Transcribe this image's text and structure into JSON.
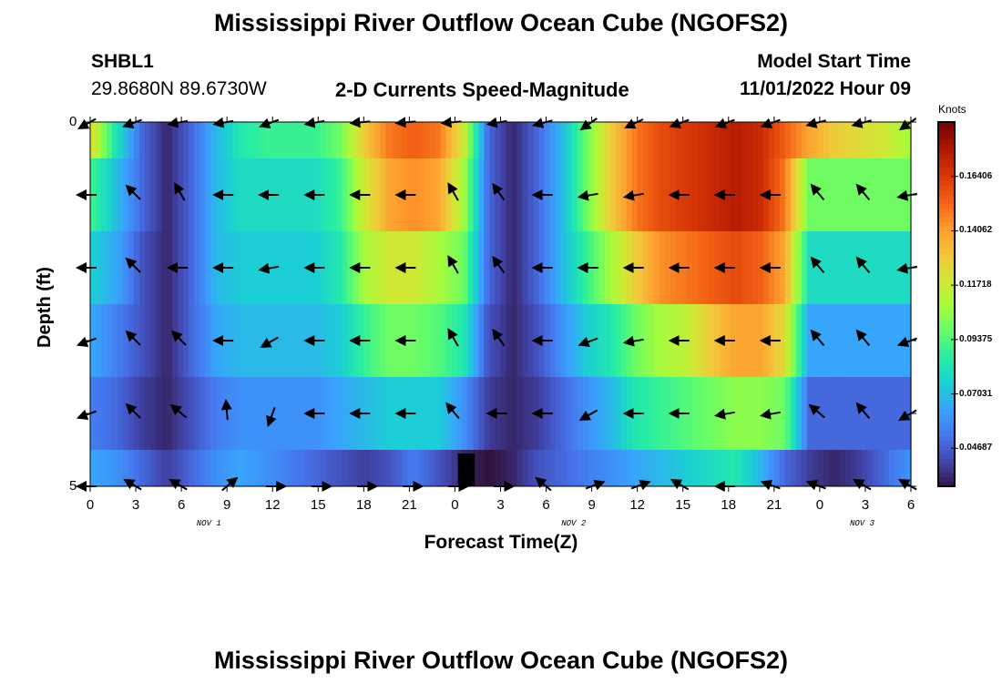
{
  "header": {
    "title": "Mississippi River Outflow Ocean Cube (NGOFS2)",
    "station": "SHBL1",
    "coords": "29.8680N  89.6730W",
    "subtitle": "2-D Currents Speed-Magnitude",
    "model_label": "Model Start Time",
    "model_time": "11/01/2022 Hour 09"
  },
  "footer": {
    "title": "Mississippi River Outflow Ocean Cube (NGOFS2)"
  },
  "colors": {
    "colormap": [
      "#30123b",
      "#4145ab",
      "#4675ed",
      "#39a2fc",
      "#1bcfd4",
      "#24eca6",
      "#61fc6c",
      "#a4fc3b",
      "#d1e834",
      "#f3c63a",
      "#fe9b2d",
      "#f36315",
      "#d93806",
      "#b11901",
      "#7a0402"
    ]
  },
  "chart_data": {
    "type": "heatmap",
    "xlabel": "Forecast Time(Z)",
    "ylabel": "Depth (ft)",
    "x_tick_labels": [
      "0",
      "3",
      "6",
      "9",
      "12",
      "15",
      "18",
      "21",
      "0",
      "3",
      "6",
      "9",
      "12",
      "15",
      "18",
      "21",
      "0",
      "3",
      "6"
    ],
    "date_labels": [
      "NOV 1",
      "NOV 2",
      "NOV 3"
    ],
    "y_tick_labels": [
      "0",
      "5"
    ],
    "ylim": [
      0,
      5
    ],
    "xlim_hours": [
      0,
      54
    ],
    "colorbar": {
      "title": "Knots",
      "range": [
        0.0305,
        0.1875
      ],
      "tick_labels": [
        "0.16406",
        "0.14062",
        "0.11718",
        "0.09375",
        "0.07031",
        "0.04687"
      ],
      "tick_values": [
        0.16406,
        0.14062,
        0.11718,
        0.09375,
        0.07031,
        0.04687
      ]
    },
    "layers": [
      {
        "depth_band": [
          0,
          0.5
        ],
        "speed": [
          0.12,
          0.08,
          0.05,
          0.035,
          0.05,
          0.07,
          0.085,
          0.09,
          0.09,
          0.09,
          0.1,
          0.13,
          0.15,
          0.155,
          0.15,
          0.12,
          0.05,
          0.035,
          0.05,
          0.07,
          0.1,
          0.13,
          0.15,
          0.16,
          0.165,
          0.17,
          0.175,
          0.17,
          0.155,
          0.14,
          0.13,
          0.125,
          0.12,
          0.11
        ]
      },
      {
        "depth_band": [
          0.5,
          1.5
        ],
        "speed": [
          0.09,
          0.07,
          0.05,
          0.035,
          0.05,
          0.07,
          0.08,
          0.08,
          0.08,
          0.08,
          0.09,
          0.12,
          0.14,
          0.145,
          0.14,
          0.11,
          0.05,
          0.035,
          0.05,
          0.07,
          0.1,
          0.13,
          0.15,
          0.16,
          0.165,
          0.17,
          0.175,
          0.17,
          0.15,
          0.1,
          0.1,
          0.1,
          0.1,
          0.1
        ]
      },
      {
        "depth_band": [
          1.5,
          2.5
        ],
        "speed": [
          0.075,
          0.065,
          0.045,
          0.035,
          0.05,
          0.07,
          0.075,
          0.075,
          0.075,
          0.075,
          0.085,
          0.11,
          0.12,
          0.12,
          0.11,
          0.1,
          0.05,
          0.035,
          0.05,
          0.07,
          0.09,
          0.11,
          0.13,
          0.145,
          0.15,
          0.155,
          0.16,
          0.155,
          0.14,
          0.08,
          0.08,
          0.08,
          0.08,
          0.08
        ]
      },
      {
        "depth_band": [
          2.5,
          3.5
        ],
        "speed": [
          0.065,
          0.055,
          0.045,
          0.035,
          0.05,
          0.065,
          0.07,
          0.07,
          0.07,
          0.07,
          0.075,
          0.09,
          0.1,
          0.1,
          0.095,
          0.085,
          0.045,
          0.035,
          0.045,
          0.06,
          0.075,
          0.085,
          0.1,
          0.11,
          0.115,
          0.13,
          0.14,
          0.14,
          0.125,
          0.065,
          0.065,
          0.065,
          0.065,
          0.065
        ]
      },
      {
        "depth_band": [
          3.5,
          4.5
        ],
        "speed": [
          0.055,
          0.05,
          0.04,
          0.035,
          0.045,
          0.055,
          0.06,
          0.06,
          0.06,
          0.06,
          0.065,
          0.07,
          0.075,
          0.075,
          0.075,
          0.06,
          0.04,
          0.035,
          0.04,
          0.05,
          0.06,
          0.07,
          0.085,
          0.09,
          0.095,
          0.1,
          0.105,
          0.105,
          0.1,
          0.05,
          0.05,
          0.05,
          0.05,
          0.05
        ]
      },
      {
        "depth_band": [
          4.5,
          5
        ],
        "speed": [
          0.065,
          0.06,
          0.05,
          0.04,
          0.05,
          0.06,
          0.065,
          0.06,
          0.055,
          0.05,
          0.045,
          0.04,
          0.045,
          0.055,
          0.045,
          0.035,
          0.0305,
          0.035,
          0.045,
          0.05,
          0.055,
          0.06,
          0.065,
          0.07,
          0.075,
          0.08,
          0.085,
          0.07,
          0.05,
          0.04,
          0.035,
          0.04,
          0.05,
          0.06
        ]
      }
    ],
    "arrows": {
      "hours": [
        0,
        3,
        6,
        9,
        12,
        15,
        18,
        21,
        24,
        27,
        30,
        33,
        36,
        39,
        42,
        45,
        48,
        51,
        54
      ],
      "depths": [
        0,
        1,
        2,
        3,
        4,
        5
      ],
      "directions_deg": [
        [
          210,
          200,
          190,
          190,
          200,
          190,
          185,
          185,
          185,
          190,
          195,
          215,
          205,
          200,
          200,
          200,
          195,
          195,
          215
        ],
        [
          180,
          135,
          120,
          180,
          180,
          180,
          180,
          180,
          120,
          125,
          180,
          190,
          190,
          180,
          180,
          180,
          130,
          130,
          190
        ],
        [
          180,
          135,
          180,
          180,
          190,
          180,
          180,
          180,
          120,
          125,
          180,
          180,
          180,
          180,
          180,
          180,
          130,
          130,
          190
        ],
        [
          200,
          135,
          135,
          180,
          210,
          180,
          180,
          180,
          120,
          125,
          180,
          200,
          190,
          180,
          180,
          180,
          130,
          130,
          200
        ],
        [
          200,
          135,
          140,
          95,
          250,
          180,
          180,
          180,
          130,
          180,
          180,
          210,
          180,
          180,
          190,
          190,
          140,
          130,
          210
        ],
        [
          180,
          150,
          150,
          40,
          0,
          0,
          0,
          0,
          0,
          0,
          140,
          20,
          20,
          150,
          180,
          160,
          160,
          150,
          150
        ]
      ]
    }
  }
}
